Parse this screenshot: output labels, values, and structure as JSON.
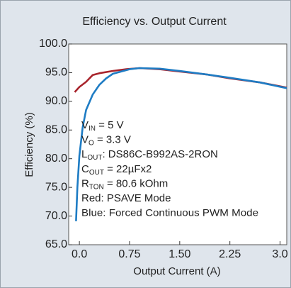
{
  "chart_data": {
    "type": "line",
    "title": "Efficiency vs. Output Current",
    "xlabel": "Output Current (A)",
    "ylabel": "Efficiency (%)",
    "xlim": [
      -0.16,
      3.1
    ],
    "ylim": [
      65,
      100
    ],
    "xticks": [
      {
        "value": 0,
        "label": "0.0"
      },
      0.75,
      {
        "value": 1.5,
        "label": "1.50"
      },
      2.25,
      {
        "value": 3,
        "label": "3.0"
      }
    ],
    "yticks": [
      {
        "value": 65,
        "label": "65.0"
      },
      {
        "value": 70,
        "label": "70.0"
      },
      {
        "value": 75,
        "label": "75.0"
      },
      {
        "value": 80,
        "label": "80.0"
      },
      {
        "value": 85,
        "label": "85.0"
      },
      {
        "value": 90,
        "label": "90.0"
      },
      {
        "value": 95,
        "label": "95.0"
      },
      {
        "value": 100,
        "label": "100.0"
      }
    ],
    "series": [
      {
        "name": "PSAVE Mode",
        "color": "#a8242c",
        "x": [
          -0.07,
          0.0,
          0.1,
          0.2,
          0.3,
          0.5,
          0.7,
          0.9,
          1.2,
          1.5,
          1.9,
          2.25,
          2.7,
          3.1
        ],
        "values": [
          91.6,
          92.5,
          93.4,
          94.6,
          94.9,
          95.3,
          95.6,
          95.8,
          95.6,
          95.2,
          94.7,
          94.0,
          93.3,
          92.4
        ]
      },
      {
        "name": "Forced Continuous PWM Mode",
        "color": "#1e7cc4",
        "x": [
          -0.05,
          -0.03,
          0.0,
          0.05,
          0.1,
          0.2,
          0.3,
          0.4,
          0.5,
          0.75,
          0.9,
          1.2,
          1.5,
          1.9,
          2.25,
          2.7,
          3.1
        ],
        "values": [
          69.1,
          75.0,
          80.5,
          85.5,
          88.5,
          91.2,
          92.9,
          94.0,
          94.8,
          95.6,
          95.8,
          95.7,
          95.3,
          94.7,
          94.1,
          93.3,
          92.3
        ]
      }
    ],
    "annotations": [
      {
        "main": "V",
        "sub": "IN",
        "tail": " = 5 V"
      },
      {
        "main": "V",
        "sub": "O",
        "tail": " = 3.3 V"
      },
      {
        "main": "L",
        "sub": "OUT",
        "tail": ":  DS86C-B992AS-2RON"
      },
      {
        "main": "C",
        "sub": "OUT",
        "tail": " = 22µFx2"
      },
      {
        "main": "R",
        "sub": "TON",
        "tail": " = 80.6 kOhm"
      },
      {
        "main": "Red: PSAVE Mode"
      },
      {
        "main": "Blue: Forced Continuous PWM Mode"
      }
    ]
  }
}
